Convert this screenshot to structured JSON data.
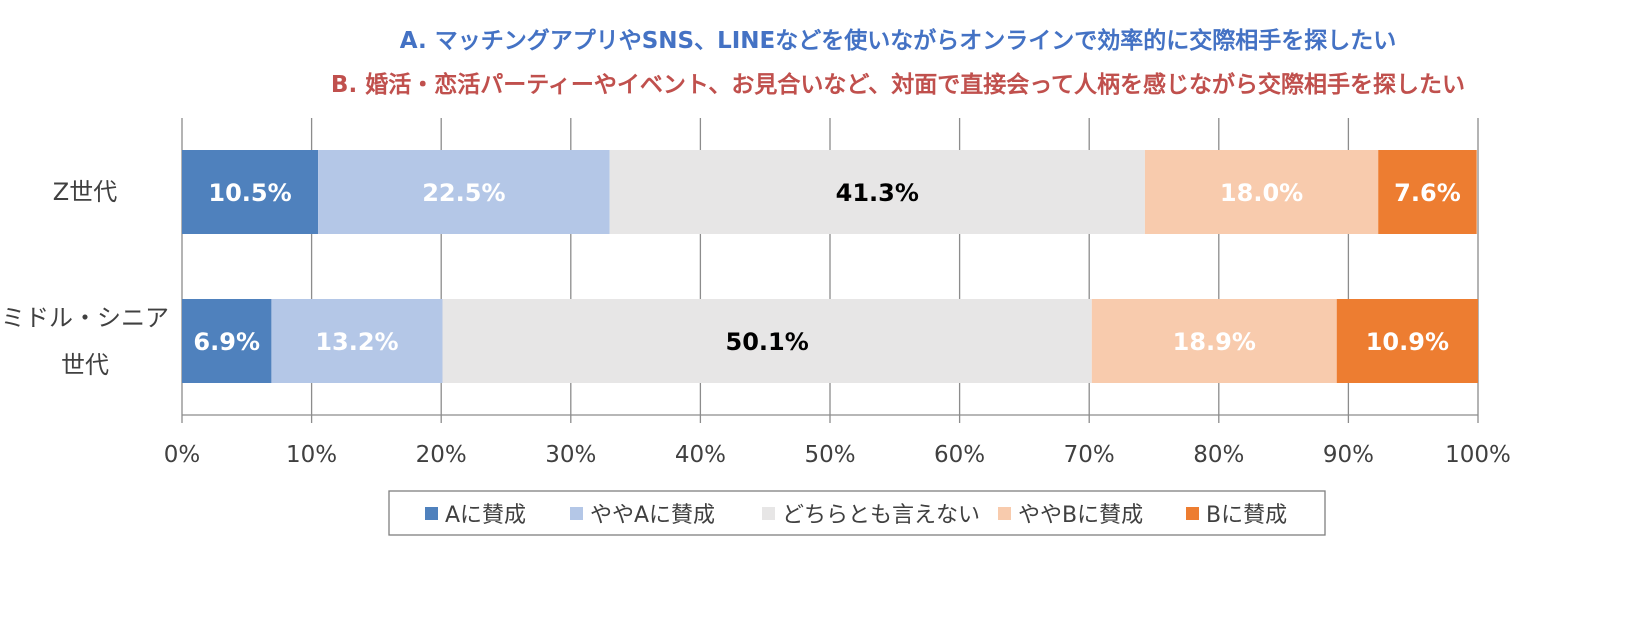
{
  "chart_data": {
    "type": "bar",
    "orientation": "horizontal",
    "stacked": true,
    "title_lines": [
      {
        "text": "A. マッチングアプリやSNS、LINEなどを使いながらオンラインで効率的に交際相手を探したい",
        "color": "#4472c4"
      },
      {
        "text": "B. 婚活・恋活パーティーやイベント、お見合いなど、対面で直接会って人柄を感じながら交際相手を探したい",
        "color": "#c0504d"
      }
    ],
    "categories": [
      {
        "lines": [
          "Z世代"
        ]
      },
      {
        "lines": [
          "ミドル・シニア",
          "世代"
        ]
      }
    ],
    "series": [
      {
        "name": "Aに賛成",
        "color": "#4f81bd",
        "label_color": "#ffffff",
        "values": [
          10.5,
          6.9
        ],
        "labels": [
          "10.5%",
          "6.9%"
        ]
      },
      {
        "name": "ややAに賛成",
        "color": "#b4c7e7",
        "label_color": "#ffffff",
        "values": [
          22.5,
          13.2
        ],
        "labels": [
          "22.5%",
          "13.2%"
        ]
      },
      {
        "name": "どちらとも言えない",
        "color": "#e7e6e6",
        "label_color": "#000000",
        "values": [
          41.3,
          50.1
        ],
        "labels": [
          "41.3%",
          "50.1%"
        ]
      },
      {
        "name": "ややBに賛成",
        "color": "#f8cbad",
        "label_color": "#ffffff",
        "values": [
          18.0,
          18.9
        ],
        "labels": [
          "18.0%",
          "18.9%"
        ]
      },
      {
        "name": "Bに賛成",
        "color": "#ed7d31",
        "label_color": "#ffffff",
        "values": [
          7.6,
          10.9
        ],
        "labels": [
          "7.6%",
          "10.9%"
        ]
      }
    ],
    "xlim": [
      0,
      100
    ],
    "xticks": [
      "0%",
      "10%",
      "20%",
      "30%",
      "40%",
      "50%",
      "60%",
      "70%",
      "80%",
      "90%",
      "100%"
    ],
    "grid": true,
    "legend_position": "bottom"
  }
}
